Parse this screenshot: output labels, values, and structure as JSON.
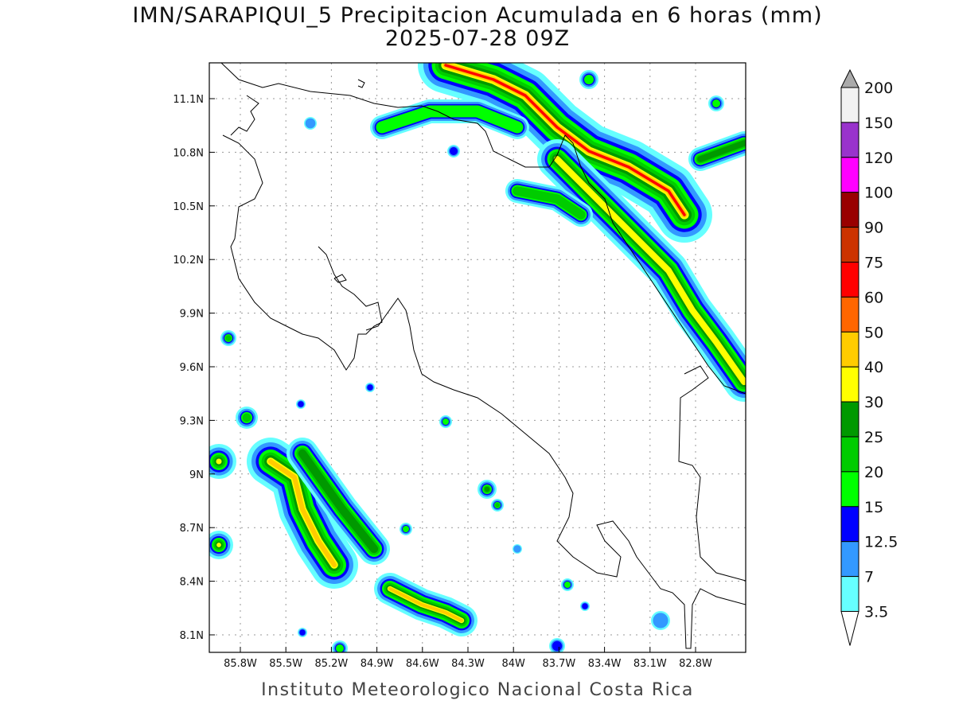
{
  "title": {
    "line1": "IMN/SARAPIQUI_5 Precipitacion Acumulada en 6 horas (mm)",
    "line2": "2025-07-28 09Z"
  },
  "footer": "Instituto Meteorologico Nacional Costa Rica",
  "map": {
    "lat_ticks": [
      "11.1N",
      "10.8N",
      "10.5N",
      "10.2N",
      "9.9N",
      "9.6N",
      "9.3N",
      "9N",
      "8.7N",
      "8.4N",
      "8.1N"
    ],
    "lon_ticks": [
      "85.8W",
      "85.5W",
      "85.2W",
      "84.9W",
      "84.6W",
      "84.3W",
      "84W",
      "83.7W",
      "83.4W",
      "83.1W",
      "82.8W"
    ]
  },
  "colorbar": {
    "labels": [
      "200",
      "150",
      "120",
      "100",
      "90",
      "75",
      "60",
      "50",
      "40",
      "30",
      "25",
      "20",
      "15",
      "12.5",
      "7",
      "3.5"
    ],
    "colors": [
      "#f2f2f2",
      "#9933cc",
      "#ff00ff",
      "#990000",
      "#cc3300",
      "#ff0000",
      "#ff6600",
      "#ffcc00",
      "#ffff00",
      "#009900",
      "#00cc00",
      "#00ff00",
      "#0000ff",
      "#3399ff",
      "#66ffff"
    ],
    "over_color": "#aaaaaa",
    "under_color": "#ffffff"
  }
}
